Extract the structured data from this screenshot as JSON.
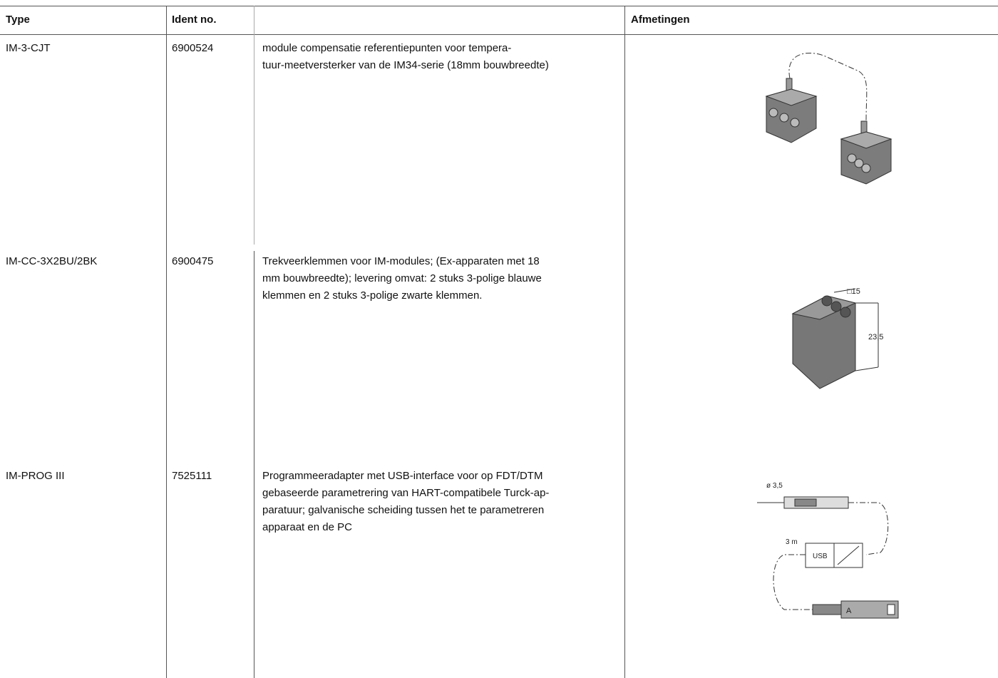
{
  "header": {
    "type": "Type",
    "ident": "Ident no.",
    "description": "",
    "dimensions": "Afmetingen"
  },
  "rows": [
    {
      "type": "IM-3-CJT",
      "ident": "6900524",
      "description": [
        "module compensatie referentiepunten voor tempera-",
        "tuur-meetversterker van de IM34-serie (18mm bouwbreedte)"
      ],
      "image_labels": []
    },
    {
      "type": "IM-CC-3X2BU/2BK",
      "ident": "6900475",
      "description": [
        "Trekveerklemmen voor IM-modules; (Ex-apparaten met 18",
        "mm bouwbreedte); levering omvat: 2 stuks 3-polige blauwe",
        "klemmen en 2 stuks 3-polige zwarte klemmen."
      ],
      "image_labels": [
        "□15",
        "23,5"
      ]
    },
    {
      "type": "IM-PROG III",
      "ident": "7525111",
      "description": [
        "Programmeeradapter met USB-interface voor op FDT/DTM",
        "gebaseerde parametrering van HART-compatibele Turck-ap-",
        "paratuur; galvanische scheiding tussen het te parametreren",
        "apparaat en de PC"
      ],
      "image_labels": [
        "ø 3,5",
        "3 m",
        "USB",
        "A"
      ]
    }
  ]
}
